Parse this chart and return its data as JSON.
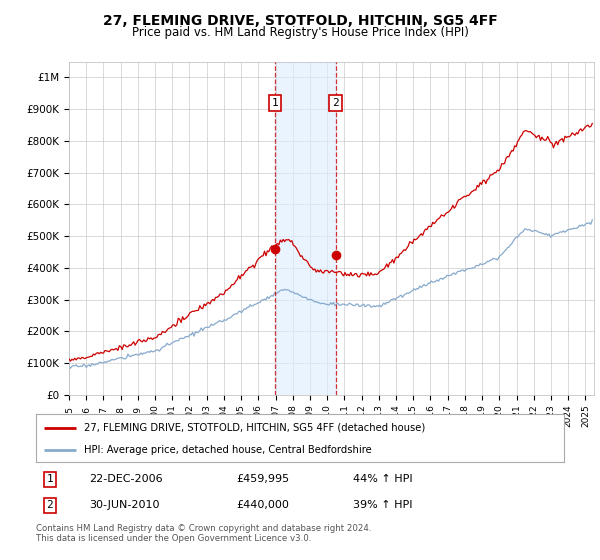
{
  "title": "27, FLEMING DRIVE, STOTFOLD, HITCHIN, SG5 4FF",
  "subtitle": "Price paid vs. HM Land Registry's House Price Index (HPI)",
  "title_fontsize": 10,
  "subtitle_fontsize": 8.5,
  "ylabel_ticks": [
    "£0",
    "£100K",
    "£200K",
    "£300K",
    "£400K",
    "£500K",
    "£600K",
    "£700K",
    "£800K",
    "£900K",
    "£1M"
  ],
  "ytick_values": [
    0,
    100000,
    200000,
    300000,
    400000,
    500000,
    600000,
    700000,
    800000,
    900000,
    1000000
  ],
  "ylim": [
    0,
    1050000
  ],
  "xlim_start": 1995.0,
  "xlim_end": 2025.5,
  "background_color": "#ffffff",
  "plot_bg_color": "#ffffff",
  "grid_color": "#cccccc",
  "red_line_color": "#cc0000",
  "blue_line_color": "#88aacc",
  "sale1_x": 2006.97,
  "sale1_y": 459995,
  "sale2_x": 2010.49,
  "sale2_y": 440000,
  "sale1_label": "22-DEC-2006",
  "sale1_price": "£459,995",
  "sale1_hpi": "44% ↑ HPI",
  "sale2_label": "30-JUN-2010",
  "sale2_price": "£440,000",
  "sale2_hpi": "39% ↑ HPI",
  "legend_line1": "27, FLEMING DRIVE, STOTFOLD, HITCHIN, SG5 4FF (detached house)",
  "legend_line2": "HPI: Average price, detached house, Central Bedfordshire",
  "footer": "Contains HM Land Registry data © Crown copyright and database right 2024.\nThis data is licensed under the Open Government Licence v3.0.",
  "xtick_years": [
    1995,
    1996,
    1997,
    1998,
    1999,
    2000,
    2001,
    2002,
    2003,
    2004,
    2005,
    2006,
    2007,
    2008,
    2009,
    2010,
    2011,
    2012,
    2013,
    2014,
    2015,
    2016,
    2017,
    2018,
    2019,
    2020,
    2021,
    2022,
    2023,
    2024,
    2025
  ],
  "shade_color": "#ddeeff",
  "shade_alpha": 0.6
}
